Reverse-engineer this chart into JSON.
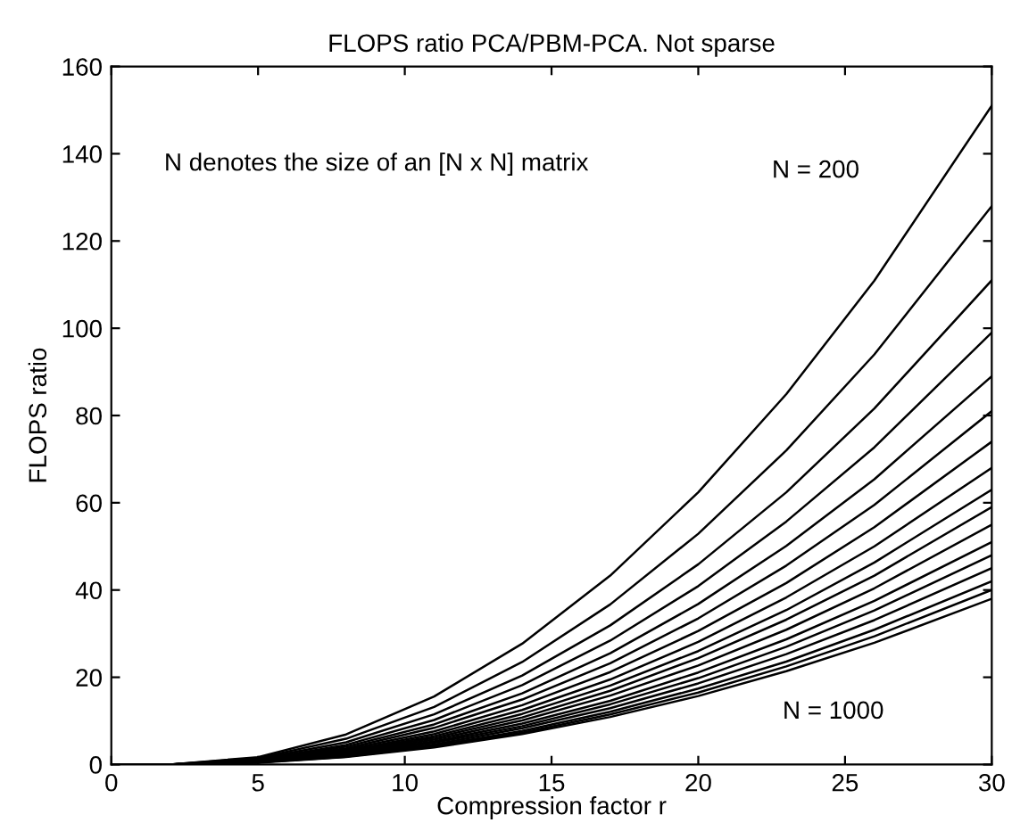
{
  "chart_data": {
    "type": "line",
    "title": "FLOPS ratio PCA/PBM-PCA. Not sparse",
    "xlabel": "Compression factor r",
    "ylabel": "FLOPS ratio",
    "x": [
      0,
      2,
      5,
      8,
      11,
      14,
      17,
      20,
      23,
      26,
      30
    ],
    "series": [
      {
        "color": "#000000",
        "values": [
          0,
          0,
          1.7,
          6.9,
          15.6,
          27.7,
          43.3,
          62.4,
          84.9,
          110.9,
          151
        ]
      },
      {
        "color": "#000000",
        "values": [
          0,
          0,
          1.5,
          5.9,
          13.2,
          23.5,
          36.7,
          52.9,
          72.0,
          94.0,
          128
        ]
      },
      {
        "color": "#000000",
        "values": [
          0,
          0,
          1.3,
          5.1,
          11.5,
          20.4,
          31.9,
          45.9,
          62.4,
          81.6,
          111
        ]
      },
      {
        "color": "#000000",
        "values": [
          0,
          0,
          1.1,
          4.5,
          10.2,
          18.2,
          28.4,
          40.9,
          55.7,
          72.7,
          99
        ]
      },
      {
        "color": "#000000",
        "values": [
          0,
          0,
          1.0,
          4.1,
          9.2,
          16.3,
          25.5,
          36.8,
          50.1,
          65.4,
          89
        ]
      },
      {
        "color": "#000000",
        "values": [
          0,
          0,
          0.9,
          3.7,
          8.4,
          14.9,
          23.2,
          33.5,
          45.6,
          59.5,
          81
        ]
      },
      {
        "color": "#000000",
        "values": [
          0,
          0,
          0.9,
          3.4,
          7.6,
          13.6,
          21.2,
          30.6,
          41.6,
          54.4,
          74
        ]
      },
      {
        "color": "#000000",
        "values": [
          0,
          0,
          0.8,
          3.1,
          7.0,
          12.5,
          19.5,
          28.1,
          38.3,
          50.0,
          68
        ]
      },
      {
        "color": "#000000",
        "values": [
          0,
          0,
          0.7,
          2.9,
          6.5,
          11.6,
          18.1,
          26.0,
          35.4,
          46.3,
          63
        ]
      },
      {
        "color": "#000000",
        "values": [
          0,
          0,
          0.7,
          2.7,
          6.1,
          10.8,
          16.9,
          24.4,
          33.2,
          43.3,
          59
        ]
      },
      {
        "color": "#000000",
        "values": [
          0,
          0,
          0.6,
          2.5,
          5.7,
          10.1,
          15.8,
          22.7,
          30.9,
          40.4,
          55
        ]
      },
      {
        "color": "#000000",
        "values": [
          0,
          0,
          0.6,
          2.3,
          5.3,
          9.4,
          14.6,
          21.1,
          28.7,
          37.5,
          51
        ]
      },
      {
        "color": "#000000",
        "values": [
          0,
          0,
          0.6,
          2.2,
          5.0,
          8.8,
          13.8,
          19.8,
          27.0,
          35.3,
          48
        ]
      },
      {
        "color": "#000000",
        "values": [
          0,
          0,
          0.5,
          2.1,
          4.6,
          8.3,
          12.9,
          18.6,
          25.3,
          33.1,
          45
        ]
      },
      {
        "color": "#000000",
        "values": [
          0,
          0,
          0.5,
          1.9,
          4.3,
          7.7,
          12.1,
          17.4,
          23.6,
          30.9,
          42
        ]
      },
      {
        "color": "#000000",
        "values": [
          0,
          0,
          0.5,
          1.8,
          4.1,
          7.3,
          11.5,
          16.5,
          22.5,
          29.4,
          40
        ]
      },
      {
        "color": "#000000",
        "values": [
          0,
          0,
          0.4,
          1.7,
          3.9,
          7.0,
          10.9,
          15.7,
          21.4,
          27.9,
          38
        ]
      }
    ],
    "xlim": [
      0,
      30
    ],
    "xticks": [
      0,
      5,
      10,
      15,
      20,
      25,
      30
    ],
    "ylim": [
      0,
      160
    ],
    "yticks": [
      0,
      20,
      40,
      60,
      80,
      100,
      120,
      140,
      160
    ],
    "grid": false,
    "marker": "none",
    "line_style": "solid",
    "annotations": [
      "N denotes the size of an [N x N] matrix",
      "N = 200",
      "N = 1000"
    ]
  }
}
